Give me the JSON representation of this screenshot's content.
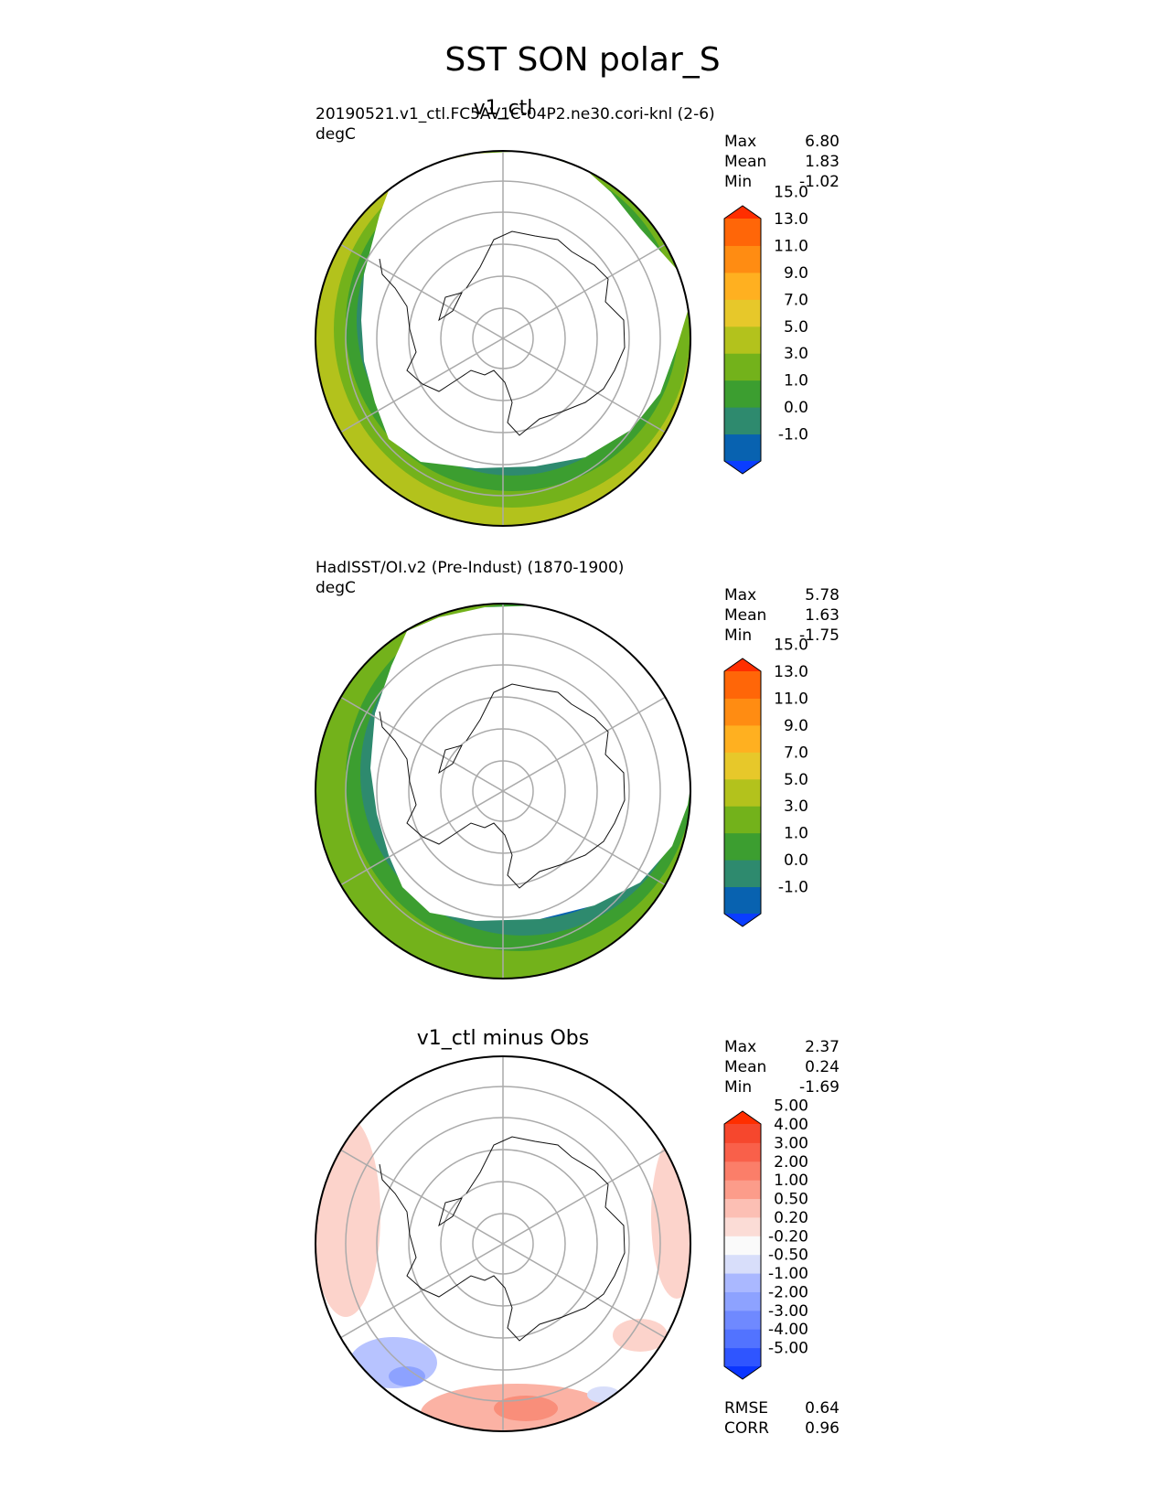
{
  "figure": {
    "title": "SST SON polar_S"
  },
  "chart_data": [
    {
      "type": "heatmap",
      "projection": "south-polar-stereographic",
      "title": "v1_ctl",
      "subtitle": "20190521.v1_ctl.FC5AV1C-04P2.ne30.cori-knl (2-6)",
      "units": "degC",
      "stats": {
        "max": "6.80",
        "mean": "1.83",
        "min": "-1.02"
      },
      "stat_labels": {
        "max": "Max",
        "mean": "Mean",
        "min": "Min"
      },
      "colorbar": {
        "tick_labels": [
          "-1.0",
          "0.0",
          "1.0",
          "3.0",
          "5.0",
          "7.0",
          "9.0",
          "11.0",
          "13.0",
          "15.0"
        ],
        "colors": [
          "#0a3dff",
          "#0862b0",
          "#2e8a6e",
          "#3c9e30",
          "#73b21b",
          "#b3c21c",
          "#e7c82a",
          "#ffb020",
          "#ff8c12",
          "#ff6608",
          "#ff2e00"
        ]
      },
      "field": {
        "sea_ice_edge_color": "#0862b0",
        "bands_outward": [
          "#0862b0",
          "#2e8a6e",
          "#3c9e30",
          "#73b21b",
          "#b3c21c"
        ],
        "band_widths_deg": [
          2.5,
          3,
          4,
          4.5,
          0
        ]
      }
    },
    {
      "type": "heatmap",
      "projection": "south-polar-stereographic",
      "title": "",
      "subtitle": "HadISST/OI.v2 (Pre-Indust) (1870-1900)",
      "units": "degC",
      "stats": {
        "max": "5.78",
        "mean": "1.63",
        "min": "-1.75"
      },
      "stat_labels": {
        "max": "Max",
        "mean": "Mean",
        "min": "Min"
      },
      "colorbar": {
        "tick_labels": [
          "-1.0",
          "0.0",
          "1.0",
          "3.0",
          "5.0",
          "7.0",
          "9.0",
          "11.0",
          "13.0",
          "15.0"
        ],
        "colors": [
          "#0a3dff",
          "#0862b0",
          "#2e8a6e",
          "#3c9e30",
          "#73b21b",
          "#b3c21c",
          "#e7c82a",
          "#ffb020",
          "#ff8c12",
          "#ff6608",
          "#ff2e00"
        ]
      },
      "field": {
        "bands_outward": [
          "#0862b0",
          "#2e8a6e",
          "#3c9e30",
          "#73b21b"
        ],
        "band_widths_deg": [
          2.5,
          3.5,
          4,
          0
        ]
      }
    },
    {
      "type": "heatmap",
      "projection": "south-polar-stereographic",
      "title": "v1_ctl minus Obs",
      "subtitle": "",
      "units": "",
      "stats": {
        "max": "2.37",
        "mean": "0.24",
        "min": "-1.69"
      },
      "stat_labels": {
        "max": "Max",
        "mean": "Mean",
        "min": "Min"
      },
      "extra_stats": {
        "rmse": "0.64",
        "corr": "0.96"
      },
      "extra_labels": {
        "rmse": "RMSE",
        "corr": "CORR"
      },
      "colorbar": {
        "tick_labels": [
          "-5.00",
          "-4.00",
          "-3.00",
          "-2.00",
          "-1.00",
          "-0.50",
          "-0.20",
          "0.20",
          "0.50",
          "1.00",
          "2.00",
          "3.00",
          "4.00",
          "5.00"
        ],
        "colors": [
          "#0a35ff",
          "#2f55ff",
          "#5273ff",
          "#6f89ff",
          "#8da2ff",
          "#aab8ff",
          "#d8defa",
          "#fafafa",
          "#fbdcd6",
          "#fcbfb4",
          "#fc9c8a",
          "#fb7e69",
          "#f9604a",
          "#f6472d",
          "#ff2e00"
        ]
      },
      "field": {
        "mostly_near_zero": true,
        "warm_color": "#fcc9bf",
        "cool_color": "#aab8ff"
      }
    }
  ]
}
